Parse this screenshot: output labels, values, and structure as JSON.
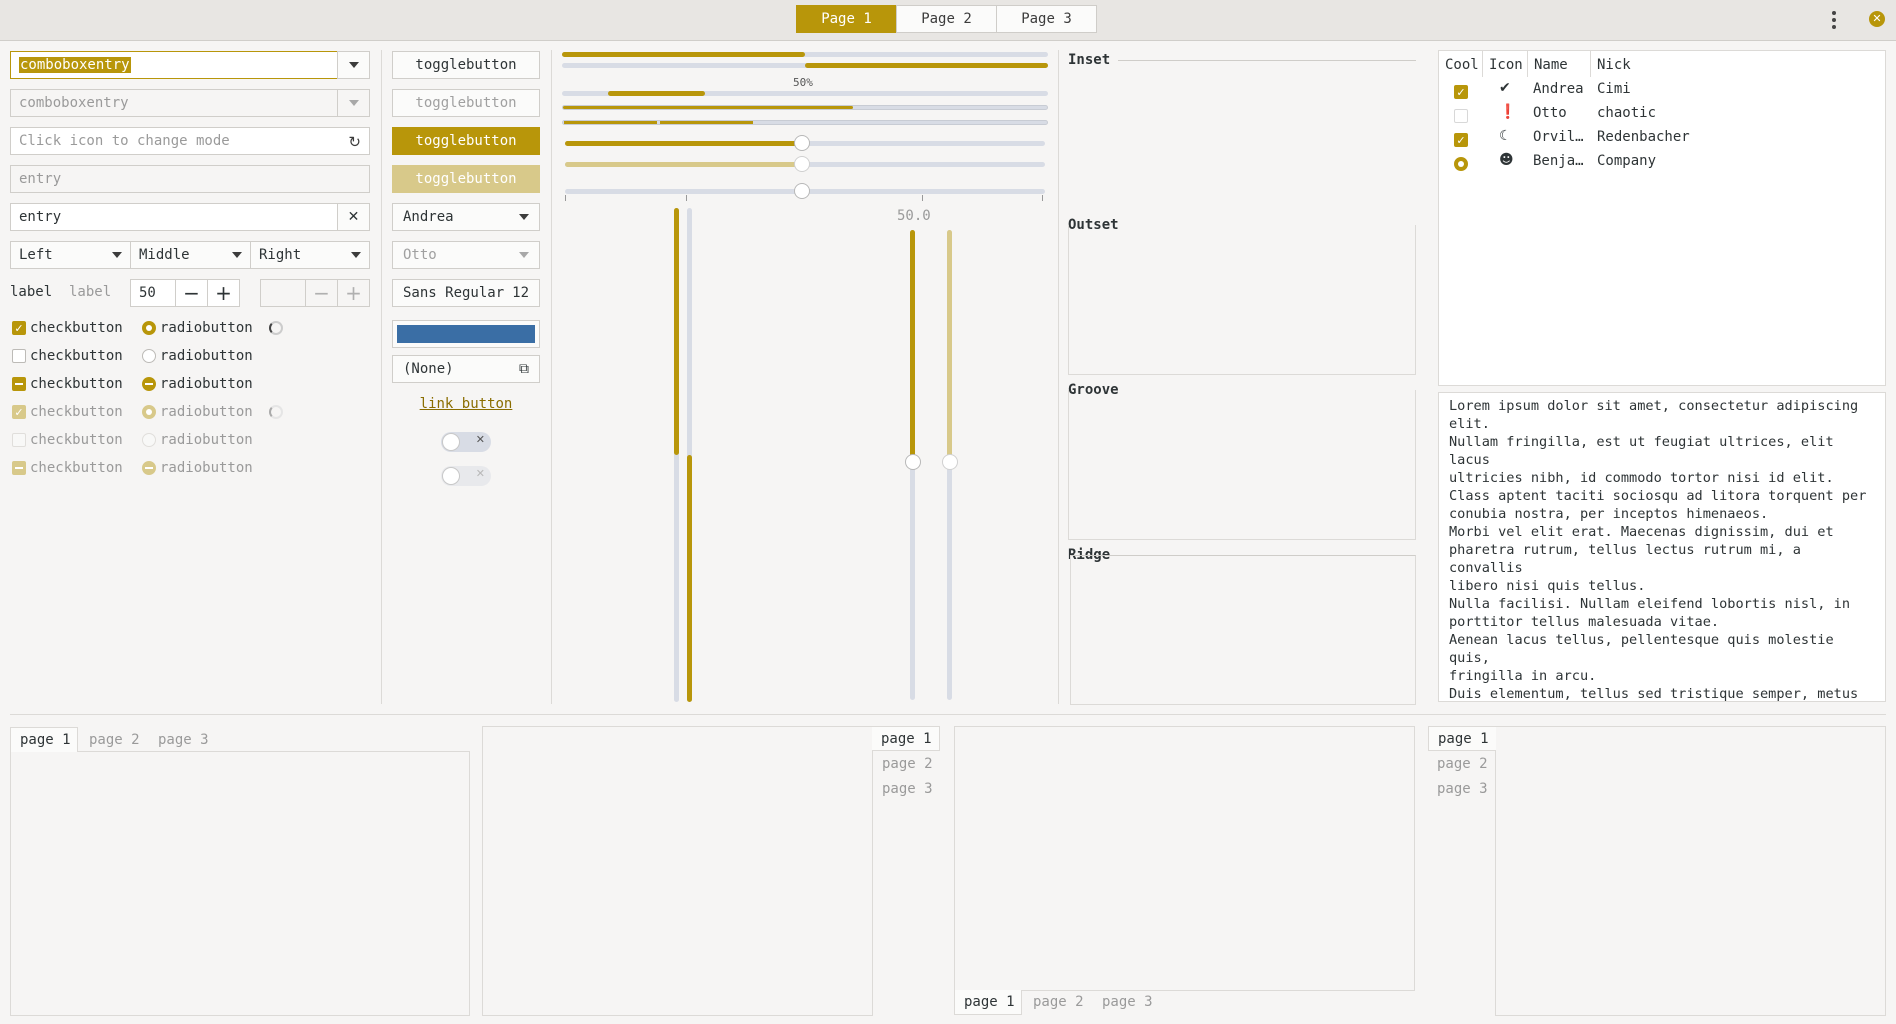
{
  "header": {
    "tabs": [
      "Page 1",
      "Page 2",
      "Page 3"
    ]
  },
  "col1": {
    "combo1": "comboboxentry",
    "combo2": "comboboxentry",
    "icon_entry_placeholder": "Click icon to change mode",
    "entry_placeholder": "entry",
    "entry_value": "entry",
    "combos": [
      "Left",
      "Middle",
      "Right"
    ],
    "label1": "label",
    "label2": "label",
    "spin_value": "50",
    "checks": [
      {
        "check": "checkbutton",
        "radio": "radiobutton"
      },
      {
        "check": "checkbutton",
        "radio": "radiobutton"
      },
      {
        "check": "checkbutton",
        "radio": "radiobutton"
      },
      {
        "check": "checkbutton",
        "radio": "radiobutton"
      },
      {
        "check": "checkbutton",
        "radio": "radiobutton"
      },
      {
        "check": "checkbutton",
        "radio": "radiobutton"
      }
    ]
  },
  "col2": {
    "toggles": [
      "togglebutton",
      "togglebutton",
      "togglebutton",
      "togglebutton"
    ],
    "combo_andrea": "Andrea",
    "combo_otto": "Otto",
    "font_name": "Sans Regular",
    "font_size": "12",
    "color_value": "#3a6ea5",
    "file_none": "(None)",
    "link": "link button"
  },
  "col3": {
    "progress_label": "50%",
    "scale_value": "50.0",
    "progress_fraction": 0.5
  },
  "frames": [
    "Inset",
    "Outset",
    "Groove",
    "Ridge"
  ],
  "tree": {
    "columns": [
      "Cool",
      "Icon",
      "Name",
      "Nick"
    ],
    "rows": [
      {
        "name": "Andrea",
        "nick": "Cimi",
        "icon": "check-circle-icon"
      },
      {
        "name": "Otto",
        "nick": "chaotic",
        "icon": "alert-icon"
      },
      {
        "name": "Orvil…",
        "nick": "Redenbacher",
        "icon": "moon-icon"
      },
      {
        "name": "Benja…",
        "nick": "Company",
        "icon": "robot-icon"
      }
    ]
  },
  "textview": "Lorem ipsum dolor sit amet, consectetur adipiscing\nelit.\nNullam fringilla, est ut feugiat ultrices, elit lacus\nultricies nibh, id commodo tortor nisi id elit.\nClass aptent taciti sociosqu ad litora torquent per\nconubia nostra, per inceptos himenaeos.\nMorbi vel elit erat. Maecenas dignissim, dui et\npharetra rutrum, tellus lectus rutrum mi, a convallis\nlibero nisi quis tellus.\nNulla facilisi. Nullam eleifend lobortis nisl, in\nporttitor tellus malesuada vitae.\nAenean lacus tellus, pellentesque quis molestie quis,\nfringilla in arcu.\nDuis elementum, tellus sed tristique semper, metus\nmetus accumsan augue, et porttitor augue orci a\nlibero.\nUt sed justo ac felis placerat laoreet sed id sem.",
  "notebooks": {
    "tabs": [
      "page 1",
      "page 2",
      "page 3"
    ]
  },
  "colors": {
    "accent": "#b8960a"
  }
}
